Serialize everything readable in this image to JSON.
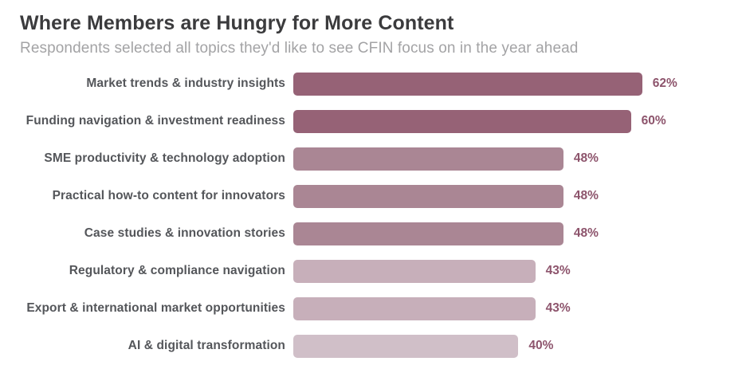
{
  "header": {
    "title": "Where Members are Hungry for More Content",
    "subtitle": "Respondents selected all topics they'd like to see CFIN focus on in the year ahead"
  },
  "colors": {
    "title_text": "#3b3b3d",
    "subtitle_text": "#a3a3a5",
    "category_label_text": "#54565a",
    "value_label_text": "#8d546c",
    "background": "#ffffff",
    "bar_dark": "#966276",
    "bar_medium": "#aa8694",
    "bar_light": "#c7afba",
    "bar_lightest": "#d0bfc8"
  },
  "chart_data": {
    "type": "bar",
    "orientation": "horizontal",
    "title": "Where Members are Hungry for More Content",
    "subtitle": "Respondents selected all topics they'd like to see CFIN focus on in the year ahead",
    "categories": [
      "Market trends & industry insights",
      "Funding navigation & investment readiness",
      "SME productivity & technology adoption",
      "Practical how-to content for innovators",
      "Case studies & innovation stories",
      "Regulatory & compliance navigation",
      "Export & international market opportunities",
      "AI & digital transformation"
    ],
    "values": [
      62,
      60,
      48,
      48,
      48,
      43,
      43,
      40
    ],
    "value_labels": [
      "62%",
      "60%",
      "48%",
      "48%",
      "48%",
      "43%",
      "43%",
      "40%"
    ],
    "value_suffix": "%",
    "bar_colors": [
      "#966276",
      "#966276",
      "#aa8694",
      "#aa8694",
      "#aa8694",
      "#c7afba",
      "#c7afba",
      "#d0bfc8"
    ],
    "xlabel": "",
    "ylabel": "",
    "grid": false,
    "legend": false,
    "axis_shown": false,
    "data_labels_position": "right-of-bar"
  }
}
